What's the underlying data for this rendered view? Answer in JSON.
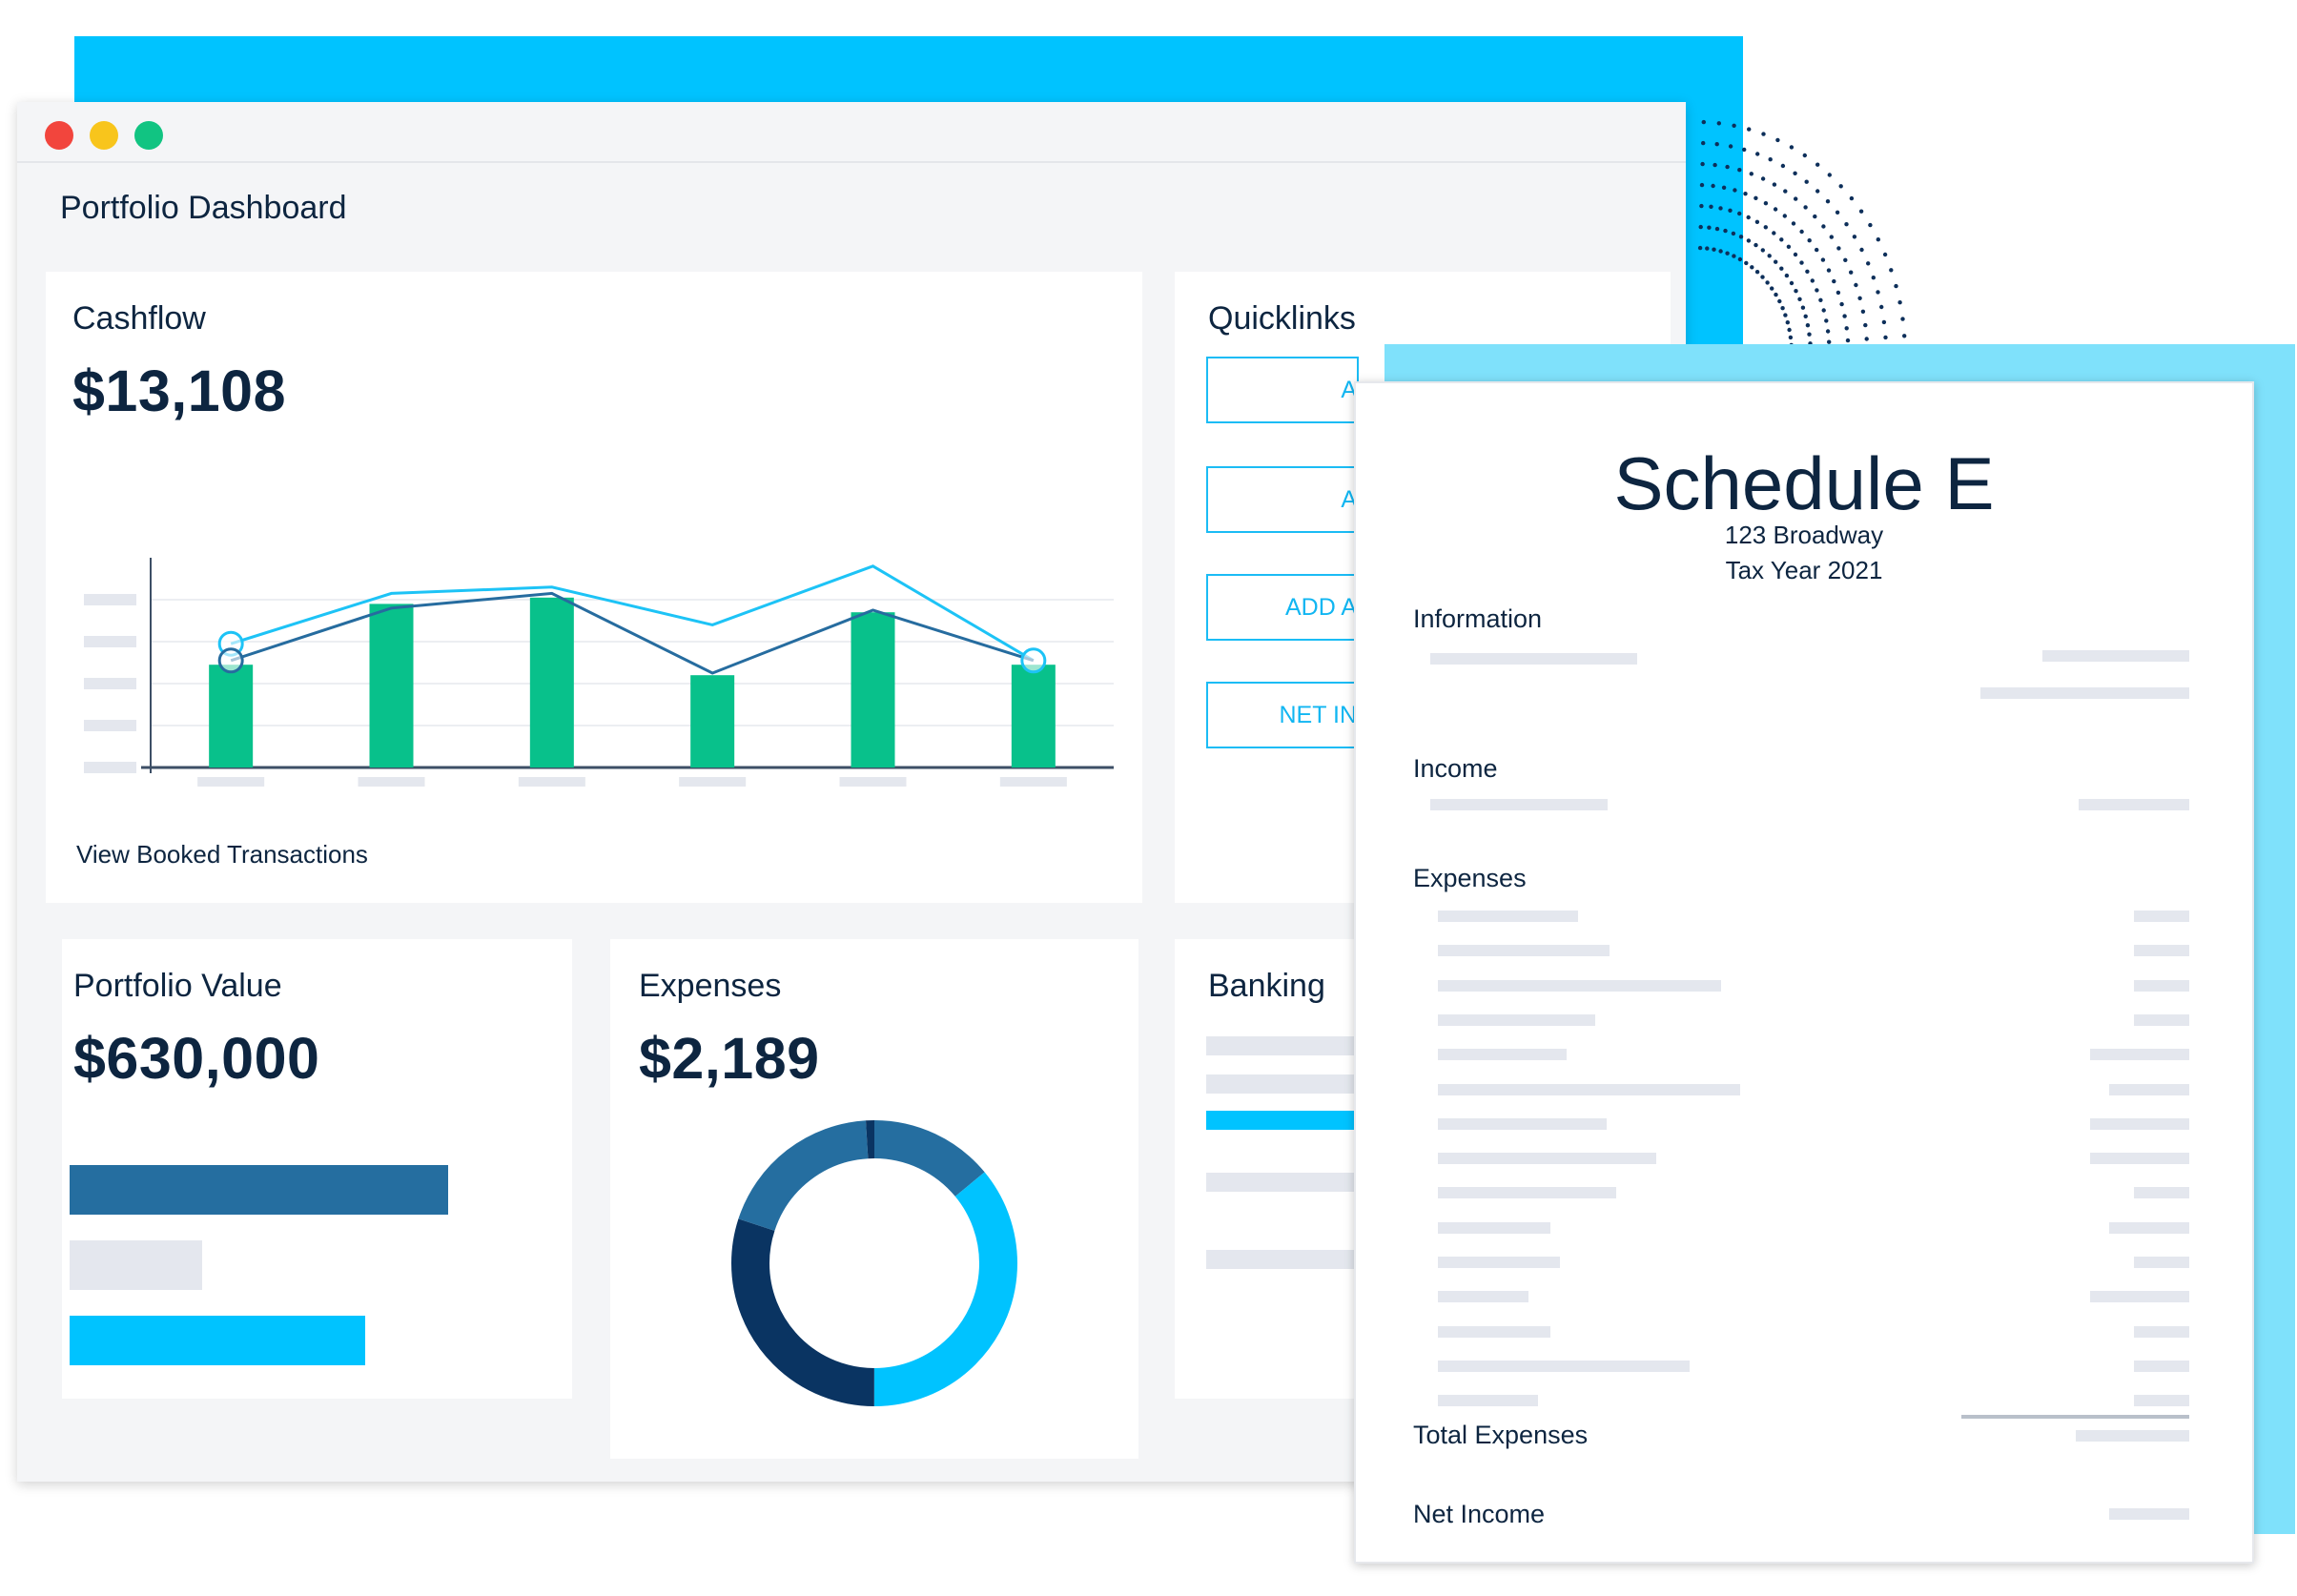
{
  "window": {
    "title": "Portfolio Dashboard"
  },
  "cashflow": {
    "title": "Cashflow",
    "value": "$13,108",
    "link": "View Booked Transactions"
  },
  "chart_data": {
    "type": "bar",
    "categories": [
      "",
      "",
      "",
      "",
      "",
      ""
    ],
    "values": [
      49,
      78,
      81,
      44,
      74,
      49
    ],
    "ylim": [
      0,
      100
    ],
    "grid": true,
    "series": [
      {
        "values": [
          49,
          78,
          81,
          44,
          74,
          49
        ],
        "type": "bar",
        "color": "#08c18b"
      },
      {
        "values": [
          59,
          83,
          86,
          68,
          96,
          51
        ],
        "type": "line",
        "color": "#1dc3f6"
      },
      {
        "values": [
          51,
          76,
          83,
          45,
          75,
          51
        ],
        "type": "line",
        "color": "#266c9f"
      }
    ]
  },
  "quicklinks": {
    "title": "Quicklinks",
    "buttons": [
      "A",
      "A",
      "ADD A",
      "NET IN"
    ]
  },
  "portfolio": {
    "title": "Portfolio Value",
    "value": "$630,000",
    "bars": [
      {
        "fraction": 1.0,
        "color": "#256ea0"
      },
      {
        "fraction": 0.35,
        "color": "#e4e7ee"
      },
      {
        "fraction": 0.78,
        "color": "#00c3ff"
      }
    ]
  },
  "expenses": {
    "title": "Expenses",
    "value": "$2,189",
    "donut": [
      {
        "fraction": 0.14,
        "color": "#256ea0"
      },
      {
        "fraction": 0.36,
        "color": "#00c3ff"
      },
      {
        "fraction": 0.3,
        "color": "#0a3462"
      },
      {
        "fraction": 0.19,
        "color": "#256ea0"
      },
      {
        "fraction": 0.01,
        "color": "#0a3462"
      }
    ]
  },
  "banking": {
    "title": "Banking"
  },
  "schedule": {
    "title": "Schedule E",
    "address": "123 Broadway",
    "tax_year": "Tax Year 2021",
    "sections": {
      "information": "Information",
      "income": "Income",
      "expenses": "Expenses",
      "total_expenses": "Total Expenses",
      "net_income": "Net Income"
    }
  },
  "colors": {
    "accent": "#00c3ff",
    "accent_light": "#7fe1fb",
    "bar_green": "#08c18b",
    "navy": "#0d2540",
    "placeholder": "#e4e7ee"
  }
}
